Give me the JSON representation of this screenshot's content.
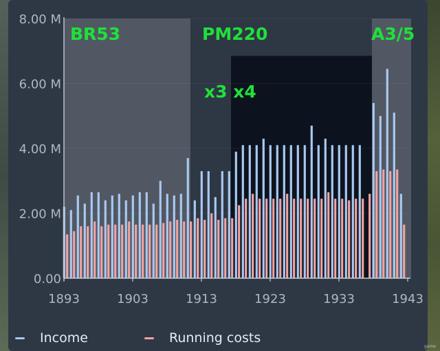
{
  "chart_data": {
    "type": "bar",
    "y_ticks": [
      "0.00",
      "2.00 M",
      "4.00 M",
      "6.00 M",
      "8.00 M"
    ],
    "ylim": [
      0,
      8000000
    ],
    "x_ticks": [
      "1893",
      "1903",
      "1913",
      "1923",
      "1933",
      "1943"
    ],
    "xlim": [
      1893,
      1943
    ],
    "years": [
      1893,
      1894,
      1895,
      1896,
      1897,
      1898,
      1899,
      1900,
      1901,
      1902,
      1903,
      1904,
      1905,
      1906,
      1907,
      1908,
      1909,
      1910,
      1911,
      1912,
      1913,
      1914,
      1915,
      1916,
      1917,
      1918,
      1919,
      1920,
      1921,
      1922,
      1923,
      1924,
      1925,
      1926,
      1927,
      1928,
      1929,
      1930,
      1931,
      1932,
      1933,
      1934,
      1935,
      1936,
      1937,
      1938,
      1939,
      1940,
      1941,
      1942
    ],
    "series": [
      {
        "name": "Income",
        "color": "#a9c8ef",
        "values": [
          2.2,
          2.1,
          2.55,
          2.3,
          2.65,
          2.65,
          2.4,
          2.55,
          2.6,
          2.4,
          2.55,
          2.65,
          2.65,
          2.3,
          3.0,
          2.6,
          2.55,
          2.6,
          3.7,
          2.4,
          3.3,
          3.3,
          2.5,
          3.3,
          3.3,
          3.9,
          4.1,
          4.1,
          4.1,
          4.3,
          4.1,
          4.1,
          4.1,
          4.1,
          4.1,
          4.1,
          4.7,
          4.1,
          4.3,
          4.1,
          4.1,
          4.1,
          4.1,
          4.1,
          null,
          5.4,
          5.0,
          6.45,
          5.1,
          2.6
        ]
      },
      {
        "name": "Running costs",
        "color": "#f1a3a3",
        "values": [
          1.35,
          1.45,
          1.6,
          1.6,
          1.75,
          1.6,
          1.65,
          1.65,
          1.65,
          1.75,
          1.65,
          1.65,
          1.65,
          1.65,
          1.7,
          1.75,
          1.8,
          1.75,
          1.75,
          1.85,
          1.8,
          2.0,
          1.8,
          1.85,
          1.85,
          2.25,
          2.45,
          2.6,
          2.45,
          2.45,
          2.45,
          2.45,
          2.6,
          2.45,
          2.45,
          2.45,
          2.45,
          2.45,
          2.65,
          2.45,
          2.45,
          2.4,
          2.45,
          2.45,
          2.6,
          3.3,
          3.35,
          3.3,
          3.35,
          1.65
        ]
      }
    ],
    "bands": [
      {
        "label": "BR53",
        "start": 1893,
        "end": 1911.4,
        "shade": "light"
      },
      {
        "label": "PM220",
        "start": 1911.4,
        "end": 1937.8,
        "shade": "none"
      },
      {
        "label": "A3/5",
        "start": 1937.8,
        "end": 1943.5,
        "shade": "light"
      },
      {
        "label": "",
        "start": 1917.3,
        "end": 1937.8,
        "shade": "dark",
        "top_value": 6.85
      }
    ],
    "annotations": [
      "x3 x4"
    ],
    "legend_position": "bottom-left",
    "grid": true
  },
  "legend": {
    "income_label": "Income",
    "costs_label": "Running costs"
  },
  "watermark": "game"
}
